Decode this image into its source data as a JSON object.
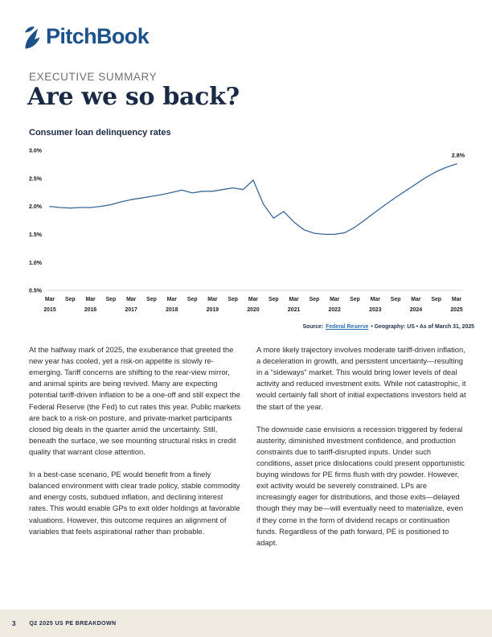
{
  "brand": {
    "logo_text": "PitchBook",
    "logo_color": "#1d5189"
  },
  "header": {
    "eyebrow": "EXECUTIVE SUMMARY",
    "title": "Are we so back?"
  },
  "chart_data": {
    "type": "line",
    "title": "Consumer loan delinquency rates",
    "x": [
      "2015-Q1",
      "2015-Q2",
      "2015-Q3",
      "2015-Q4",
      "2016-Q1",
      "2016-Q2",
      "2016-Q3",
      "2016-Q4",
      "2017-Q1",
      "2017-Q2",
      "2017-Q3",
      "2017-Q4",
      "2018-Q1",
      "2018-Q2",
      "2018-Q3",
      "2018-Q4",
      "2019-Q1",
      "2019-Q2",
      "2019-Q3",
      "2019-Q4",
      "2020-Q1",
      "2020-Q2",
      "2020-Q3",
      "2020-Q4",
      "2021-Q1",
      "2021-Q2",
      "2021-Q3",
      "2021-Q4",
      "2022-Q1",
      "2022-Q2",
      "2022-Q3",
      "2022-Q4",
      "2023-Q1",
      "2023-Q2",
      "2023-Q3",
      "2023-Q4",
      "2024-Q1",
      "2024-Q2",
      "2024-Q3",
      "2024-Q4",
      "2025-Q1"
    ],
    "values": [
      2.0,
      1.98,
      1.97,
      1.98,
      1.98,
      2.0,
      2.03,
      2.08,
      2.12,
      2.15,
      2.18,
      2.21,
      2.25,
      2.29,
      2.24,
      2.27,
      2.27,
      2.3,
      2.33,
      2.3,
      2.47,
      2.04,
      1.79,
      1.91,
      1.72,
      1.58,
      1.52,
      1.5,
      1.5,
      1.53,
      1.63,
      1.76,
      1.9,
      2.03,
      2.16,
      2.28,
      2.4,
      2.52,
      2.62,
      2.7,
      2.76
    ],
    "ylim": [
      0.5,
      3.0
    ],
    "y_ticks": [
      {
        "label": "3.0%",
        "value": 3.0
      },
      {
        "label": "2.5%",
        "value": 2.5
      },
      {
        "label": "2.0%",
        "value": 2.0
      },
      {
        "label": "1.5%",
        "value": 1.5
      },
      {
        "label": "1.0%",
        "value": 1.0
      },
      {
        "label": "0.5%",
        "value": 0.5
      }
    ],
    "x_tick_months": [
      "Mar",
      "Sep",
      "Mar",
      "Sep",
      "Mar",
      "Sep",
      "Mar",
      "Sep",
      "Mar",
      "Sep",
      "Mar",
      "Sep",
      "Mar",
      "Sep",
      "Mar",
      "Sep",
      "Mar",
      "Sep",
      "Mar",
      "Sep",
      "Mar"
    ],
    "x_tick_years": [
      "2015",
      "2016",
      "2017",
      "2018",
      "2019",
      "2020",
      "2021",
      "2022",
      "2023",
      "2024",
      "2025"
    ],
    "end_label": "2.8%",
    "line_color": "#3a6795",
    "axis_color": "#c6c6c6",
    "grid": "off",
    "legend": "none",
    "ylabel": "",
    "xlabel": ""
  },
  "source": {
    "prefix": "Source:",
    "link_text": "Federal Reserve",
    "suffix": "•  Geography: US  •  As of March 31, 2025"
  },
  "body": {
    "left": {
      "p1": "At the halfway mark of 2025, the exuberance that greeted the new year has cooled, yet a risk-on appetite is slowly re-emerging. Tariff concerns are shifting to the rear-view mirror, and animal spirits are being revived. Many are expecting potential tariff-driven inflation to be a one-off and still expect the Federal Reserve (the Fed) to cut rates this year. Public markets are back to a risk-on posture, and private-market participants closed big deals in the quarter amid the uncertainty. Still, beneath the surface, we see mounting structural risks in credit quality that warrant close attention.",
      "p2": "In a best-case scenario, PE would benefit from a finely balanced environment with clear trade policy, stable commodity and energy costs, subdued inflation, and declining interest rates. This would enable GPs to exit older holdings at favorable valuations. However, this outcome requires an alignment of variables that feels aspirational rather than probable."
    },
    "right": {
      "p1": "A more likely trajectory involves moderate tariff-driven inflation, a deceleration in growth, and persistent uncertainty—resulting in a “sideways” market. This would bring lower levels of deal activity and reduced investment exits. While not catastrophic, it would certainly fall short of initial expectations investors held at the start of the year.",
      "p2": "The downside case envisions a recession triggered by federal austerity, diminished investment confidence, and production constraints due to tariff-disrupted inputs. Under such conditions, asset price dislocations could present opportunistic buying windows for PE firms flush with dry powder. However, exit activity would be severely constrained. LPs are increasingly eager for distributions, and those exits—delayed though they may be—will eventually need to materialize, even if they come in the form of dividend recaps or continuation funds. Regardless of the path forward, PE is positioned to adapt."
    }
  },
  "footer": {
    "page_number": "3",
    "report_title": "Q2 2025 US PE BREAKDOWN"
  }
}
